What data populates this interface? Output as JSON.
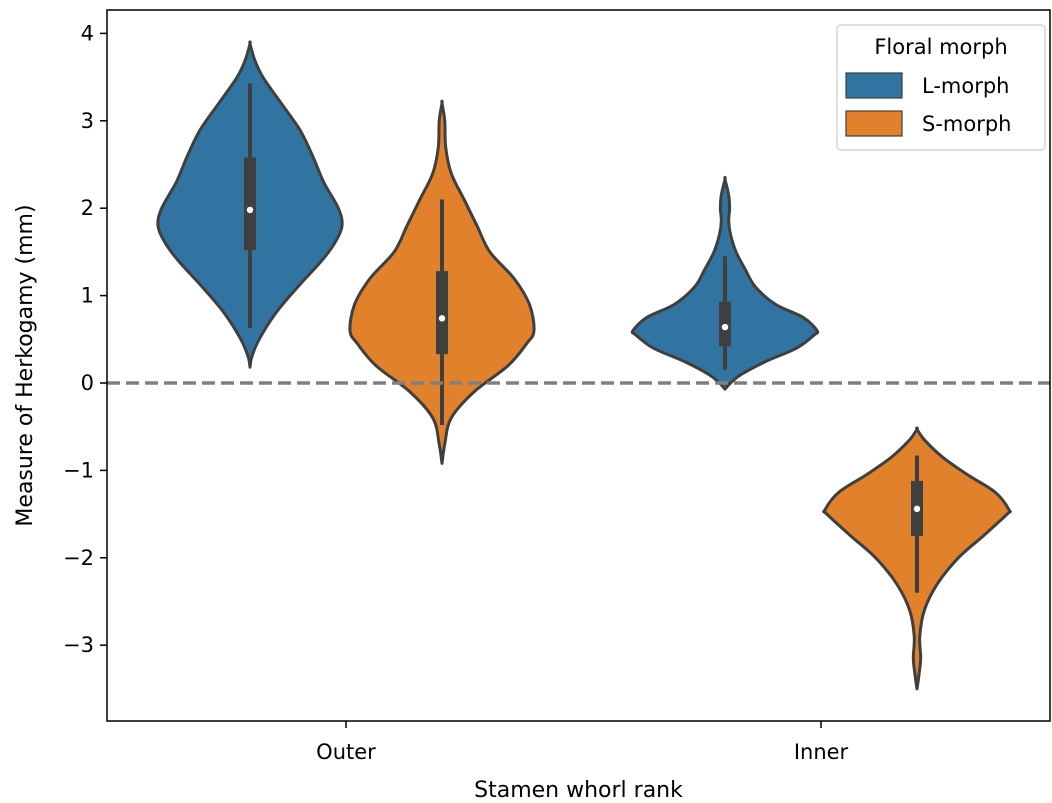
{
  "chart_data": {
    "type": "violin",
    "title": "",
    "xlabel": "Stamen whorl rank",
    "ylabel": "Measure of Herkogamy (mm)",
    "categories": [
      "Outer",
      "Inner"
    ],
    "ylim": [
      -3.9,
      4.3
    ],
    "yticks": [
      4,
      3,
      2,
      1,
      0,
      -1,
      -2,
      -3
    ],
    "ytick_labels": [
      "4",
      "3",
      "2",
      "1",
      "0",
      "−1",
      "−2",
      "−3"
    ],
    "reference_line": {
      "y": 0,
      "style": "dashed",
      "color": "#808080"
    },
    "grid": false,
    "legend": {
      "title": "Floral morph",
      "position": "top-right",
      "entries": [
        "L-morph",
        "S-morph"
      ]
    },
    "series": [
      {
        "name": "L-morph",
        "color": "#3274a1",
        "violins": [
          {
            "category": "Outer",
            "min": 0.18,
            "max": 3.88,
            "whisker_low": 0.63,
            "q1": 1.52,
            "median": 1.98,
            "q3": 2.58,
            "whisker_high": 3.43,
            "profile": [
              [
                0.18,
                0.0
              ],
              [
                0.3,
                0.02
              ],
              [
                0.5,
                0.1
              ],
              [
                0.8,
                0.28
              ],
              [
                1.1,
                0.52
              ],
              [
                1.4,
                0.78
              ],
              [
                1.6,
                0.92
              ],
              [
                1.8,
                1.0
              ],
              [
                2.0,
                0.96
              ],
              [
                2.3,
                0.8
              ],
              [
                2.6,
                0.68
              ],
              [
                2.9,
                0.54
              ],
              [
                3.2,
                0.34
              ],
              [
                3.5,
                0.14
              ],
              [
                3.7,
                0.05
              ],
              [
                3.88,
                0.0
              ]
            ]
          },
          {
            "category": "Inner",
            "min": -0.07,
            "max": 2.33,
            "whisker_low": 0.15,
            "q1": 0.42,
            "median": 0.64,
            "q3": 0.93,
            "whisker_high": 1.45,
            "profile": [
              [
                -0.07,
                0.0
              ],
              [
                0.0,
                0.06
              ],
              [
                0.1,
                0.18
              ],
              [
                0.25,
                0.45
              ],
              [
                0.4,
                0.78
              ],
              [
                0.55,
                0.97
              ],
              [
                0.6,
                1.0
              ],
              [
                0.75,
                0.85
              ],
              [
                0.9,
                0.55
              ],
              [
                1.1,
                0.33
              ],
              [
                1.3,
                0.22
              ],
              [
                1.5,
                0.12
              ],
              [
                1.7,
                0.06
              ],
              [
                1.85,
                0.04
              ],
              [
                2.0,
                0.05
              ],
              [
                2.15,
                0.04
              ],
              [
                2.33,
                0.0
              ]
            ]
          }
        ]
      },
      {
        "name": "S-morph",
        "color": "#e1812c",
        "violins": [
          {
            "category": "Outer",
            "min": -0.92,
            "max": 3.2,
            "whisker_low": -0.48,
            "q1": 0.33,
            "median": 0.74,
            "q3": 1.28,
            "whisker_high": 2.1,
            "profile": [
              [
                -0.92,
                0.0
              ],
              [
                -0.7,
                0.03
              ],
              [
                -0.4,
                0.1
              ],
              [
                -0.1,
                0.35
              ],
              [
                0.2,
                0.72
              ],
              [
                0.45,
                0.92
              ],
              [
                0.6,
                1.0
              ],
              [
                0.9,
                0.95
              ],
              [
                1.2,
                0.78
              ],
              [
                1.5,
                0.52
              ],
              [
                1.8,
                0.38
              ],
              [
                2.1,
                0.24
              ],
              [
                2.4,
                0.1
              ],
              [
                2.7,
                0.04
              ],
              [
                3.0,
                0.03
              ],
              [
                3.2,
                0.0
              ]
            ]
          },
          {
            "category": "Inner",
            "min": -3.5,
            "max": -0.53,
            "whisker_low": -2.4,
            "q1": -1.75,
            "median": -1.44,
            "q3": -1.12,
            "whisker_high": -0.83,
            "profile": [
              [
                -3.5,
                0.0
              ],
              [
                -3.35,
                0.02
              ],
              [
                -3.15,
                0.04
              ],
              [
                -2.9,
                0.03
              ],
              [
                -2.6,
                0.08
              ],
              [
                -2.3,
                0.22
              ],
              [
                -2.0,
                0.45
              ],
              [
                -1.75,
                0.72
              ],
              [
                -1.5,
                0.98
              ],
              [
                -1.45,
                1.0
              ],
              [
                -1.25,
                0.85
              ],
              [
                -1.05,
                0.55
              ],
              [
                -0.85,
                0.28
              ],
              [
                -0.65,
                0.08
              ],
              [
                -0.53,
                0.0
              ]
            ]
          }
        ]
      }
    ]
  }
}
